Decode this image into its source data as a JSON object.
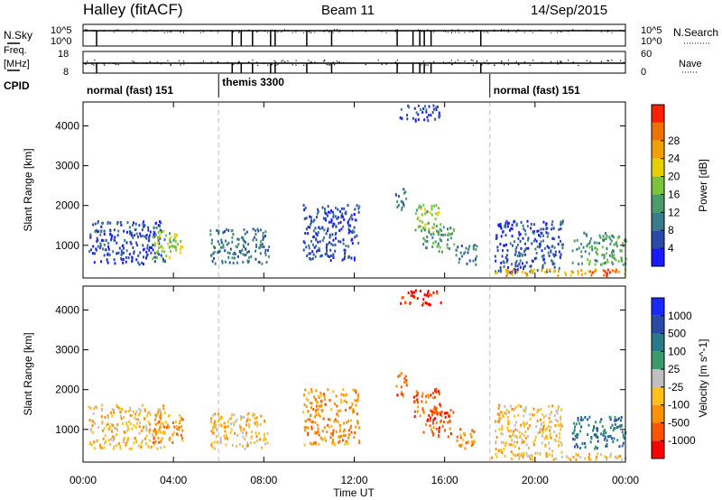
{
  "header": {
    "station": "Halley (fitACF)",
    "beam": "Beam 11",
    "date": "14/Sep/2015"
  },
  "panel_labels": {
    "nsky": "N.Sky",
    "nsearch": "N.Search",
    "freq": "Freq.",
    "freq_unit": "[MHz]",
    "nave": "Nave",
    "cpid": "CPID"
  },
  "aux_ticks": {
    "nsky": [
      "10^5",
      "10^0"
    ],
    "nsearch": [
      "10^5",
      "10^0"
    ],
    "freq": [
      "18",
      "8"
    ],
    "nave": [
      "60",
      "0"
    ]
  },
  "cpid_segments": [
    {
      "label": "normal (fast) 151",
      "start_h": 0
    },
    {
      "label": "themis 3300",
      "start_h": 6
    },
    {
      "label": "normal (fast) 151",
      "start_h": 18
    }
  ],
  "scan_gaps_h": [
    0.6,
    6.6,
    7.0,
    7.5,
    8.3,
    8.5,
    9.9,
    11.0,
    13.9,
    14.6,
    14.9,
    15.1,
    15.4,
    17.6
  ],
  "colors": {
    "power": [
      "#1a1aff",
      "#2a4aa8",
      "#3a7a8a",
      "#4a9a6a",
      "#7ac43a",
      "#e8d000",
      "#f0a000",
      "#f07000",
      "#ff2000"
    ],
    "velocity": [
      "#ff0000",
      "#ff5500",
      "#ff9000",
      "#ffc020",
      "#c0c0c0",
      "#3a9a6a",
      "#2a7a8a",
      "#2a4aa8",
      "#1a2aff"
    ]
  },
  "chart_data": [
    {
      "type": "heatmap",
      "name": "Power",
      "xlabel": "Time UT",
      "ylabel": "Slant Range [km]",
      "xlim": [
        0,
        24
      ],
      "ylim": [
        180,
        4600
      ],
      "x_ticks": [
        "00:00",
        "04:00",
        "08:00",
        "12:00",
        "16:00",
        "20:00",
        "00:00"
      ],
      "y_ticks": [
        1000,
        2000,
        3000,
        4000
      ],
      "colorbar_label": "Power [dB]",
      "colorbar_ticks": [
        "4",
        "8",
        "12",
        "16",
        "20",
        "24",
        "28"
      ],
      "colorbar_range": [
        0,
        30
      ],
      "cpid_boundaries_h": [
        6,
        18
      ],
      "echo_regions": [
        {
          "t": [
            0.2,
            3.6
          ],
          "r": [
            500,
            1600
          ],
          "level": 1
        },
        {
          "t": [
            3.0,
            4.4
          ],
          "r": [
            650,
            1350
          ],
          "level": 4
        },
        {
          "t": [
            5.6,
            8.2
          ],
          "r": [
            500,
            1400
          ],
          "level": 2
        },
        {
          "t": [
            9.7,
            12.2
          ],
          "r": [
            600,
            2000
          ],
          "level": 1
        },
        {
          "t": [
            13.8,
            14.3
          ],
          "r": [
            1800,
            2400
          ],
          "level": 2
        },
        {
          "t": [
            14.0,
            15.8
          ],
          "r": [
            4100,
            4500
          ],
          "level": 1
        },
        {
          "t": [
            14.6,
            15.8
          ],
          "r": [
            1300,
            2000
          ],
          "level": 4
        },
        {
          "t": [
            15.0,
            16.4
          ],
          "r": [
            800,
            1500
          ],
          "level": 3
        },
        {
          "t": [
            16.4,
            17.4
          ],
          "r": [
            500,
            1000
          ],
          "level": 2
        },
        {
          "t": [
            18.2,
            21.2
          ],
          "r": [
            300,
            1600
          ],
          "level": 1
        },
        {
          "t": [
            21.6,
            24.0
          ],
          "r": [
            500,
            1300
          ],
          "level": 3
        },
        {
          "t": [
            18.0,
            24.0
          ],
          "r": [
            220,
            380
          ],
          "level": 6
        },
        {
          "t": [
            22.5,
            23.6
          ],
          "r": [
            220,
            380
          ],
          "level": 8
        }
      ]
    },
    {
      "type": "heatmap",
      "name": "Velocity",
      "xlabel": "Time UT",
      "ylabel": "Slant Range [km]",
      "xlim": [
        0,
        24
      ],
      "ylim": [
        180,
        4600
      ],
      "x_ticks": [
        "00:00",
        "04:00",
        "08:00",
        "12:00",
        "16:00",
        "20:00",
        "00:00"
      ],
      "y_ticks": [
        1000,
        2000,
        3000,
        4000
      ],
      "colorbar_label": "Velocity [m s^-1]",
      "colorbar_ticks": [
        "1000",
        "500",
        "100",
        "25",
        "-25",
        "-100",
        "-500",
        "-1000"
      ],
      "cpid_boundaries_h": [
        6,
        18
      ],
      "echo_regions": [
        {
          "t": [
            0.2,
            3.6
          ],
          "r": [
            500,
            1600
          ],
          "level": 3
        },
        {
          "t": [
            3.0,
            4.4
          ],
          "r": [
            650,
            1350
          ],
          "level": 2
        },
        {
          "t": [
            5.6,
            8.2
          ],
          "r": [
            500,
            1400
          ],
          "level": 3
        },
        {
          "t": [
            9.7,
            12.2
          ],
          "r": [
            600,
            2000
          ],
          "level": 2
        },
        {
          "t": [
            13.8,
            14.3
          ],
          "r": [
            1800,
            2400
          ],
          "level": 1
        },
        {
          "t": [
            14.0,
            15.8
          ],
          "r": [
            4100,
            4500
          ],
          "level": 0
        },
        {
          "t": [
            14.6,
            15.8
          ],
          "r": [
            1300,
            2000
          ],
          "level": 1
        },
        {
          "t": [
            15.0,
            16.4
          ],
          "r": [
            800,
            1500
          ],
          "level": 1
        },
        {
          "t": [
            16.4,
            17.4
          ],
          "r": [
            500,
            1000
          ],
          "level": 2
        },
        {
          "t": [
            18.2,
            21.2
          ],
          "r": [
            300,
            1600
          ],
          "level": 3
        },
        {
          "t": [
            21.6,
            24.0
          ],
          "r": [
            500,
            1300
          ],
          "level": 6
        },
        {
          "t": [
            18.0,
            24.0
          ],
          "r": [
            220,
            380
          ],
          "level": 3
        }
      ]
    }
  ]
}
